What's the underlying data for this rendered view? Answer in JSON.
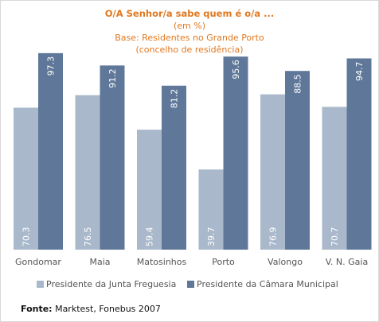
{
  "header": {
    "title": "O/A Senhor/a sabe quem é o/a ...",
    "unit": "(em %)",
    "base": "Base: Residentes no Grande Porto",
    "base_detail": "(concelho de residência)"
  },
  "footer": {
    "label": "Fonte:",
    "text": "Marktest, Fonebus 2007"
  },
  "colors": {
    "series1": "#a9b9cb",
    "series2": "#5f7899",
    "title": "#e07820",
    "axis_text": "#555555",
    "value_label": "#ffffff"
  },
  "chart_data": {
    "type": "bar",
    "title": "O/A Senhor/a sabe quem é o/a ...",
    "subtitle": "(em %) Base: Residentes no Grande Porto (concelho de residência)",
    "categories": [
      "Gondomar",
      "Maia",
      "Matosinhos",
      "Porto",
      "Valongo",
      "V. N. Gaia"
    ],
    "series": [
      {
        "name": "Presidente da Junta Freguesia",
        "values": [
          70.3,
          76.5,
          59.4,
          39.7,
          76.9,
          70.7
        ]
      },
      {
        "name": "Presidente da Câmara Municipal",
        "values": [
          97.3,
          91.2,
          81.2,
          95.6,
          88.5,
          94.7
        ]
      }
    ],
    "ylim": [
      0,
      100
    ],
    "grid": false,
    "legend": "bottom",
    "xlabel": "",
    "ylabel": ""
  }
}
